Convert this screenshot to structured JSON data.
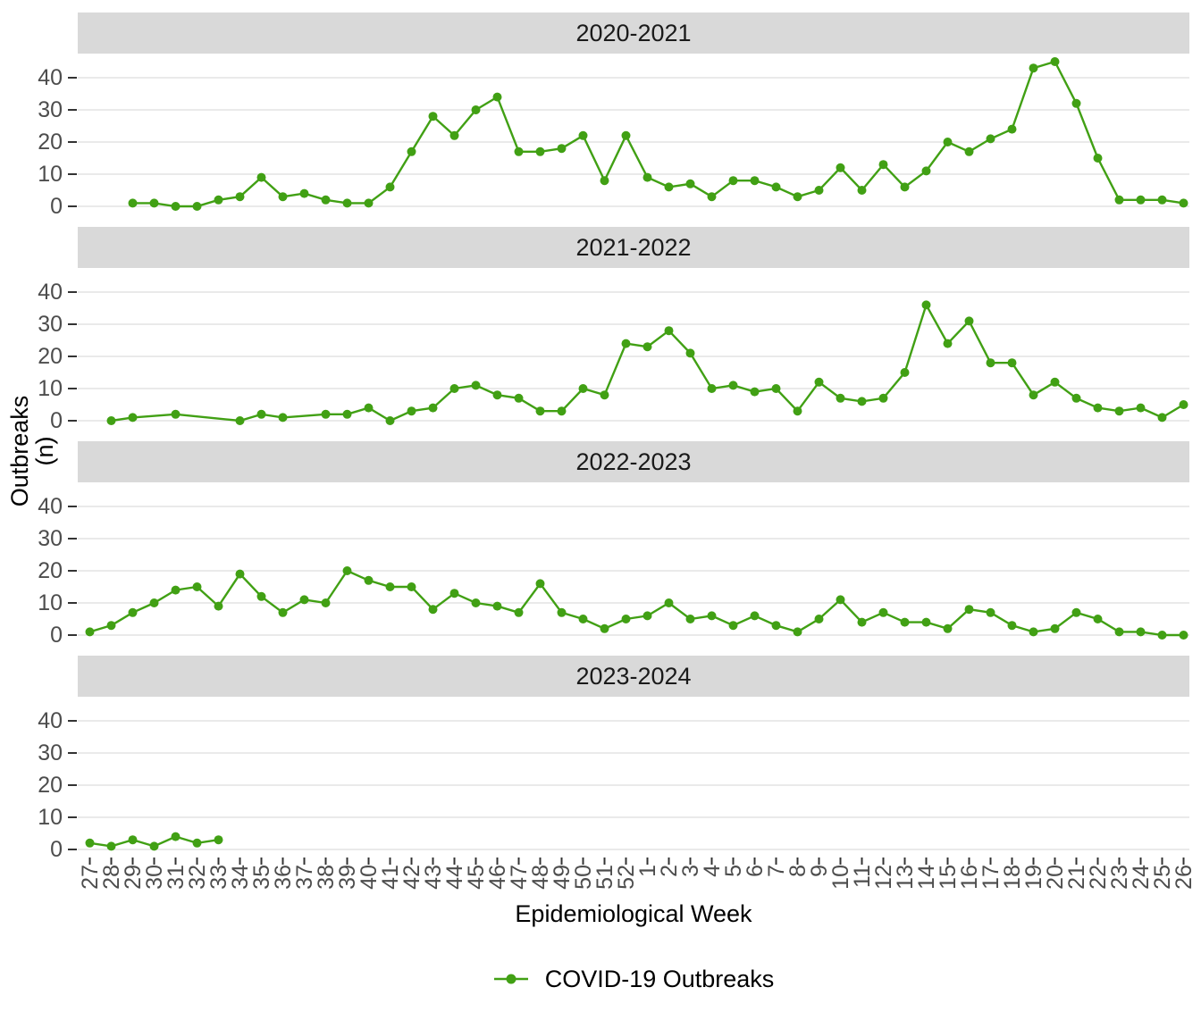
{
  "chart_data": {
    "type": "line",
    "title": "",
    "xlabel": "Epidemiological Week",
    "ylabel": "Outbreaks (n)",
    "ylim": [
      0,
      45
    ],
    "yticks": [
      0,
      10,
      20,
      30,
      40
    ],
    "grid": "major-horizontal-only",
    "x_categories": [
      "27",
      "28",
      "29",
      "30",
      "31",
      "32",
      "33",
      "34",
      "35",
      "36",
      "37",
      "38",
      "39",
      "40",
      "41",
      "42",
      "43",
      "44",
      "45",
      "46",
      "47",
      "48",
      "49",
      "50",
      "51",
      "52",
      "1",
      "2",
      "3",
      "4",
      "5",
      "6",
      "7",
      "8",
      "9",
      "10",
      "11",
      "12",
      "13",
      "14",
      "15",
      "16",
      "17",
      "18",
      "19",
      "20",
      "21",
      "22",
      "23",
      "24",
      "25",
      "26"
    ],
    "legend": {
      "label": "COVID-19 Outbreaks",
      "position": "bottom"
    },
    "colors": {
      "line": "#41a014",
      "strip_bg": "#d9d9d9",
      "gridline": "#e3e3e3",
      "tick_text": "#4d4d4d",
      "tick_mark": "#333333"
    },
    "facets": [
      {
        "label": "2020-2021",
        "weeks": [
          "29",
          "30",
          "31",
          "32",
          "33",
          "34",
          "35",
          "36",
          "37",
          "38",
          "39",
          "40",
          "41",
          "42",
          "43",
          "44",
          "45",
          "46",
          "47",
          "48",
          "49",
          "50",
          "51",
          "52",
          "1",
          "2",
          "3",
          "4",
          "5",
          "6",
          "7",
          "8",
          "9",
          "10",
          "11",
          "12",
          "13",
          "14",
          "15",
          "16",
          "17",
          "18",
          "19",
          "20",
          "21",
          "22",
          "23",
          "24",
          "25",
          "26"
        ],
        "values": [
          1,
          1,
          0,
          0,
          2,
          3,
          9,
          3,
          4,
          2,
          1,
          1,
          6,
          17,
          28,
          22,
          30,
          34,
          17,
          17,
          18,
          22,
          8,
          22,
          9,
          6,
          7,
          3,
          8,
          8,
          6,
          3,
          5,
          12,
          5,
          13,
          6,
          11,
          20,
          17,
          21,
          24,
          43,
          45,
          32,
          15,
          2,
          2,
          2,
          1
        ]
      },
      {
        "label": "2021-2022",
        "weeks": [
          "28",
          "29",
          "31",
          "34",
          "35",
          "36",
          "38",
          "39",
          "40",
          "41",
          "42",
          "43",
          "44",
          "45",
          "46",
          "47",
          "48",
          "49",
          "50",
          "51",
          "52",
          "1",
          "2",
          "3",
          "4",
          "5",
          "6",
          "7",
          "8",
          "9",
          "10",
          "11",
          "12",
          "13",
          "14",
          "15",
          "16",
          "17",
          "18",
          "19",
          "20",
          "21",
          "22",
          "23",
          "24",
          "25",
          "26"
        ],
        "values": [
          0,
          1,
          2,
          0,
          2,
          1,
          2,
          2,
          4,
          0,
          3,
          4,
          10,
          11,
          8,
          7,
          3,
          3,
          10,
          8,
          24,
          23,
          28,
          21,
          10,
          11,
          9,
          10,
          3,
          12,
          7,
          6,
          7,
          15,
          36,
          24,
          31,
          18,
          18,
          8,
          12,
          7,
          4,
          3,
          4,
          1,
          5
        ]
      },
      {
        "label": "2022-2023",
        "weeks": [
          "27",
          "28",
          "29",
          "30",
          "31",
          "32",
          "33",
          "34",
          "35",
          "36",
          "37",
          "38",
          "39",
          "40",
          "41",
          "42",
          "43",
          "44",
          "45",
          "46",
          "47",
          "48",
          "49",
          "50",
          "51",
          "52",
          "1",
          "2",
          "3",
          "4",
          "5",
          "6",
          "7",
          "8",
          "9",
          "10",
          "11",
          "12",
          "13",
          "14",
          "15",
          "16",
          "17",
          "18",
          "19",
          "20",
          "21",
          "22",
          "23",
          "24",
          "25",
          "26"
        ],
        "values": [
          1,
          3,
          7,
          10,
          14,
          15,
          9,
          19,
          12,
          7,
          11,
          10,
          20,
          17,
          15,
          15,
          8,
          13,
          10,
          9,
          7,
          16,
          7,
          5,
          2,
          5,
          6,
          10,
          5,
          6,
          3,
          6,
          3,
          1,
          5,
          11,
          4,
          7,
          4,
          4,
          2,
          8,
          7,
          3,
          1,
          2,
          7,
          5,
          1,
          1,
          0,
          0
        ]
      },
      {
        "label": "2023-2024",
        "weeks": [
          "27",
          "28",
          "29",
          "30",
          "31",
          "32",
          "33"
        ],
        "values": [
          2,
          1,
          3,
          1,
          4,
          2,
          3
        ]
      }
    ]
  }
}
